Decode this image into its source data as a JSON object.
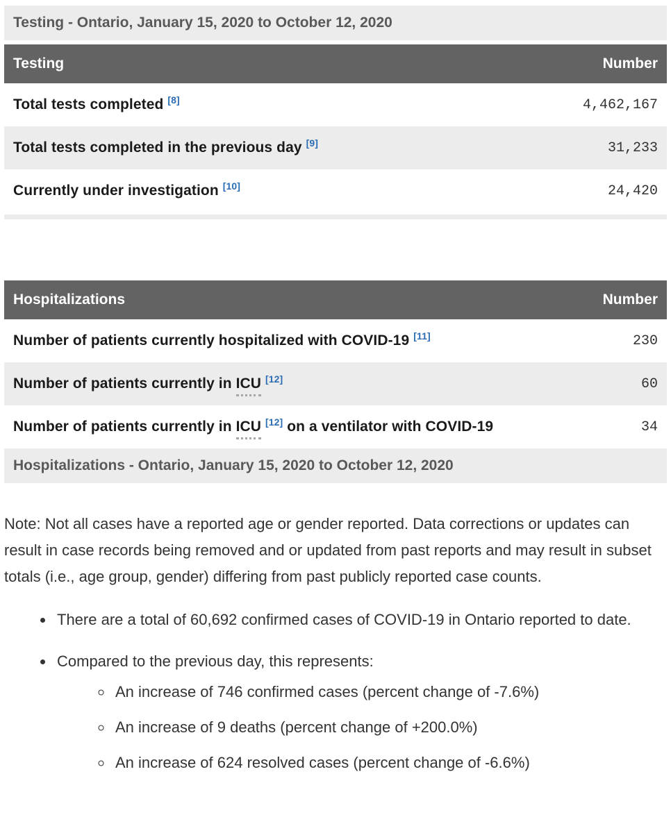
{
  "colors": {
    "header_bg": "#636363",
    "header_text": "#ffffff",
    "stripe_bg": "#ececec",
    "caption_bg": "#ececec",
    "caption_text": "#595959",
    "row_label_text": "#1a1a1a",
    "row_value_text": "#333333",
    "footnote_link_blue": "#2b6db5",
    "abbr_dotted_underline": "#a6a6a6"
  },
  "tables": [
    {
      "caption": "Testing - Ontario, January 15, 2020 to October 12, 2020",
      "header": {
        "label": "Testing",
        "value_label": "Number"
      },
      "rows": [
        {
          "parts": [
            {
              "t": "text",
              "v": "Total tests completed "
            },
            {
              "t": "sup",
              "v": "[8]"
            }
          ],
          "value": "4,462,167"
        },
        {
          "parts": [
            {
              "t": "text",
              "v": "Total tests completed in the previous day "
            },
            {
              "t": "sup",
              "v": "[9]"
            }
          ],
          "value": "31,233"
        },
        {
          "parts": [
            {
              "t": "text",
              "v": "Currently under investigation "
            },
            {
              "t": "sup",
              "v": "[10]"
            }
          ],
          "value": "24,420"
        }
      ]
    },
    {
      "caption": "Hospitalizations - Ontario, January 15, 2020 to October 12, 2020",
      "header": {
        "label": "Hospitalizations",
        "value_label": "Number"
      },
      "rows": [
        {
          "parts": [
            {
              "t": "text",
              "v": "Number of patients currently hospitalized with COVID-19 "
            },
            {
              "t": "sup",
              "v": "[11]"
            }
          ],
          "value": "230"
        },
        {
          "parts": [
            {
              "t": "text",
              "v": "Number of patients currently in "
            },
            {
              "t": "abbr",
              "v": "ICU"
            },
            {
              "t": "text",
              "v": " "
            },
            {
              "t": "sup",
              "v": "[12]"
            }
          ],
          "value": "60"
        },
        {
          "parts": [
            {
              "t": "text",
              "v": "Number of patients currently in "
            },
            {
              "t": "abbr",
              "v": "ICU"
            },
            {
              "t": "text",
              "v": " "
            },
            {
              "t": "sup",
              "v": "[12]"
            },
            {
              "t": "text",
              "v": " on a ventilator with COVID-19"
            }
          ],
          "value": "34"
        }
      ]
    }
  ],
  "note": "Note: Not all cases have a reported age or gender reported. Data corrections or updates can result in case records being removed and or updated from past reports and may result in subset totals (i.e., age group, gender) differing from past publicly reported case counts.",
  "bullets": [
    {
      "text": "There are a total of 60,692 confirmed cases of COVID-19 in Ontario reported to date.",
      "children": []
    },
    {
      "text": "Compared to the previous day, this represents:",
      "children": [
        "An increase of 746 confirmed cases (percent change of -7.6%)",
        "An increase of 9 deaths (percent change of +200.0%)",
        "An increase of 624 resolved cases (percent change of -6.6%)"
      ]
    }
  ]
}
